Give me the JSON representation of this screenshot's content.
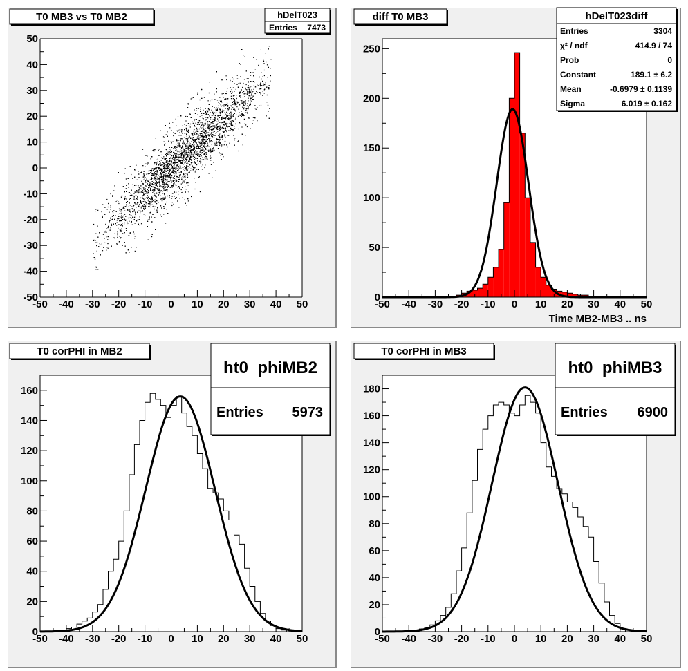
{
  "chart_data": [
    {
      "type": "scatter",
      "title": "T0 MB3 vs T0 MB2",
      "xlim": [
        -50,
        50
      ],
      "ylim": [
        -50,
        50
      ],
      "x_ticks": [
        -50,
        -40,
        -30,
        -20,
        -10,
        0,
        10,
        20,
        30,
        40,
        50
      ],
      "y_ticks": [
        -50,
        -40,
        -30,
        -20,
        -10,
        0,
        10,
        20,
        30,
        40,
        50
      ],
      "xlabel": "",
      "ylabel": "",
      "stats": {
        "name": "hDelT023",
        "rows": [
          {
            "label": "Entries",
            "value": "7473"
          }
        ]
      },
      "distribution": {
        "entries": 7473,
        "description_points": [
          {
            "x": -10,
            "y": -10
          },
          {
            "x": 0,
            "y": 0
          },
          {
            "x": 10,
            "y": 10
          },
          {
            "x": 20,
            "y": 18
          },
          {
            "x": 30,
            "y": 28
          }
        ],
        "slope": 0.95,
        "x_mean": 5,
        "x_sigma": 14,
        "y_spread": 5.5,
        "x_range": [
          -26,
          38
        ],
        "rendered_points": 5200
      }
    },
    {
      "type": "bar",
      "title": "diff T0 MB3",
      "xlabel": "Time MB2-MB3  ..  ns",
      "ylabel": "",
      "xlim": [
        -50,
        50
      ],
      "ylim": [
        0,
        260
      ],
      "x_ticks": [
        -50,
        -40,
        -30,
        -20,
        -10,
        0,
        10,
        20,
        30,
        40,
        50
      ],
      "y_ticks": [
        0,
        50,
        100,
        150,
        200,
        250
      ],
      "bin_width": 2,
      "bins_low_edges": [
        -24,
        -22,
        -20,
        -18,
        -16,
        -14,
        -12,
        -10,
        -8,
        -6,
        -4,
        -2,
        0,
        2,
        4,
        6,
        8,
        10,
        12,
        14,
        16,
        18,
        20,
        22,
        24,
        26,
        28
      ],
      "values": [
        1,
        2,
        4,
        6,
        7,
        9,
        13,
        20,
        30,
        48,
        95,
        200,
        246,
        165,
        100,
        55,
        30,
        20,
        12,
        8,
        6,
        5,
        4,
        3,
        2,
        2,
        1
      ],
      "fill_color": "#ff0000",
      "fit": {
        "constant": 189.1,
        "mean": -0.6979,
        "sigma": 6.019
      },
      "stats": {
        "name": "hDelT023diff",
        "rows": [
          {
            "label": "Entries",
            "value": "3304"
          },
          {
            "label": "χ² / ndf",
            "value": "414.9 / 74"
          },
          {
            "label": "Prob",
            "value": "0"
          },
          {
            "label": "Constant",
            "value": "189.1 ± 6.2"
          },
          {
            "label": "Mean",
            "value": "-0.6979 ± 0.1139"
          },
          {
            "label": "Sigma",
            "value": "6.019 ± 0.162"
          }
        ]
      }
    },
    {
      "type": "line",
      "title": "T0 corPHI in MB2",
      "xlabel": "",
      "ylabel": "",
      "xlim": [
        -50,
        50
      ],
      "ylim": [
        0,
        170
      ],
      "x_ticks": [
        -50,
        -40,
        -30,
        -20,
        -10,
        0,
        10,
        20,
        30,
        40,
        50
      ],
      "y_ticks": [
        0,
        20,
        40,
        60,
        80,
        100,
        120,
        140,
        160
      ],
      "bin_width": 1,
      "bins_low_edges": [
        -44,
        -42,
        -40,
        -38,
        -36,
        -34,
        -32,
        -30,
        -28,
        -26,
        -24,
        -22,
        -20,
        -18,
        -16,
        -14,
        -12,
        -10,
        -8,
        -6,
        -4,
        -2,
        0,
        2,
        4,
        6,
        8,
        10,
        12,
        14,
        16,
        18,
        20,
        22,
        24,
        26,
        28,
        30,
        32,
        34,
        36,
        38,
        40,
        42
      ],
      "values": [
        1,
        1,
        2,
        3,
        5,
        7,
        9,
        13,
        18,
        28,
        40,
        48,
        60,
        80,
        104,
        124,
        140,
        152,
        158,
        154,
        150,
        142,
        150,
        156,
        145,
        136,
        130,
        118,
        108,
        95,
        92,
        88,
        80,
        74,
        64,
        58,
        42,
        30,
        20,
        12,
        7,
        4,
        2,
        1
      ],
      "fit": {
        "constant": 156,
        "mean": 3.5,
        "sigma": 13.2
      },
      "stats": {
        "name": "ht0_phiMB2",
        "rows": [
          {
            "label": "Entries",
            "value": "5973"
          }
        ]
      }
    },
    {
      "type": "line",
      "title": "T0 corPHI in MB3",
      "xlabel": "",
      "ylabel": "",
      "xlim": [
        -50,
        50
      ],
      "ylim": [
        0,
        190
      ],
      "x_ticks": [
        -50,
        -40,
        -30,
        -20,
        -10,
        0,
        10,
        20,
        30,
        40,
        50
      ],
      "y_ticks": [
        0,
        20,
        40,
        60,
        80,
        100,
        120,
        140,
        160,
        180
      ],
      "bin_width": 1,
      "bins_low_edges": [
        -38,
        -36,
        -34,
        -32,
        -30,
        -28,
        -26,
        -24,
        -22,
        -20,
        -18,
        -16,
        -14,
        -12,
        -10,
        -8,
        -6,
        -4,
        -2,
        0,
        2,
        4,
        6,
        8,
        10,
        12,
        14,
        16,
        18,
        20,
        22,
        24,
        26,
        28,
        30,
        32,
        34,
        36,
        38,
        40
      ],
      "values": [
        1,
        2,
        3,
        5,
        8,
        12,
        18,
        28,
        45,
        62,
        88,
        112,
        135,
        150,
        160,
        168,
        170,
        168,
        162,
        160,
        168,
        175,
        170,
        162,
        140,
        122,
        115,
        106,
        102,
        96,
        92,
        85,
        78,
        70,
        52,
        36,
        22,
        12,
        6,
        2
      ],
      "fit": {
        "constant": 181,
        "mean": 4,
        "sigma": 12.5
      },
      "stats": {
        "name": "ht0_phiMB3",
        "rows": [
          {
            "label": "Entries",
            "value": "6900"
          }
        ]
      }
    }
  ]
}
